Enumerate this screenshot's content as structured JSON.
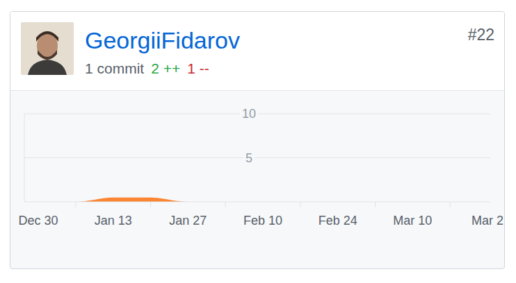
{
  "header": {
    "user": "GeorgiiFidarov",
    "rank": "#22",
    "commits": "1 commit",
    "additions": "2 ++",
    "deletions": "1 --"
  },
  "chart_data": {
    "type": "area",
    "categories": [
      "Dec 30",
      null,
      "Jan 13",
      null,
      "Jan 27",
      null,
      "Feb 10",
      null,
      "Feb 24",
      null,
      "Mar 10",
      null,
      "Mar 2"
    ],
    "values": [
      0,
      0,
      0.5,
      0.5,
      0,
      0,
      0,
      0,
      0,
      0,
      0,
      0,
      0
    ],
    "color": "#fb8532",
    "ylim": [
      0,
      10
    ],
    "yticks": [
      5,
      10
    ],
    "grid": true
  }
}
